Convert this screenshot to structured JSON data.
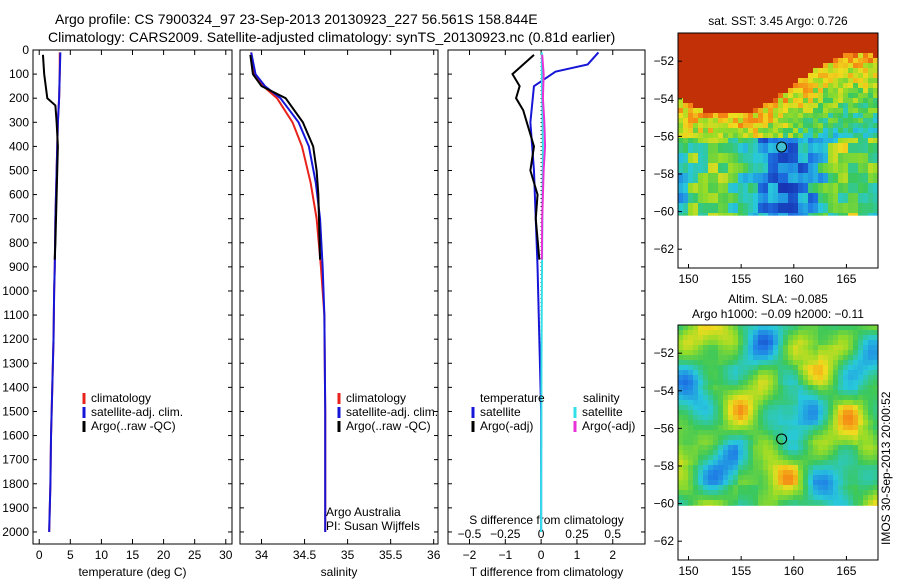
{
  "header": {
    "title_line1": "Argo profile: CS 7900324_97 23-Sep-2013 20130923_227 56.561S 158.844E",
    "title_line2": "Climatology: CARS2009. Satellite-adjusted climatology: synTS_20130923.nc (0.81d earlier)"
  },
  "side_text": "IMOS 30-Sep-2013 20:00:52",
  "colors": {
    "climatology": "#e8231c",
    "satellite": "#1616d8",
    "argo": "#000000",
    "salinity_satellite": "#33e0e8",
    "salinity_argo": "#e832d8"
  },
  "chart_data": [
    {
      "id": "temperature",
      "type": "line",
      "xlabel": "temperature (deg C)",
      "ylabel": "",
      "xlim": [
        -1,
        31
      ],
      "ylim": [
        2050,
        0
      ],
      "xticks": [
        0,
        5,
        10,
        15,
        20,
        25,
        30
      ],
      "xtick_labels": [
        "0",
        "5",
        "10",
        "15",
        "20",
        "25",
        "30"
      ],
      "yticks": [
        0,
        100,
        200,
        300,
        400,
        500,
        600,
        700,
        800,
        900,
        1000,
        1100,
        1200,
        1300,
        1400,
        1500,
        1600,
        1700,
        1800,
        1900,
        2000
      ],
      "ytick_labels": [
        "0",
        "100",
        "200",
        "300",
        "400",
        "500",
        "600",
        "700",
        "800",
        "900",
        "1000",
        "1100",
        "1200",
        "1300",
        "1400",
        "1500",
        "1600",
        "1700",
        "1800",
        "1900",
        "2000"
      ],
      "legend": [
        "climatology",
        "satellite-adj. clim.",
        "Argo(..raw -QC)"
      ],
      "legend_placement": "lower-center",
      "series": [
        {
          "name": "climatology",
          "color": "#e8231c",
          "x": [
            3.3,
            3.3,
            3.2,
            3.0,
            2.9,
            2.8,
            2.6,
            2.5,
            2.4,
            2.3,
            2.2,
            2.1,
            2.0,
            1.9,
            1.8,
            1.6
          ],
          "y": [
            10,
            100,
            200,
            300,
            400,
            500,
            700,
            900,
            1000,
            1200,
            1300,
            1400,
            1500,
            1600,
            1800,
            2000
          ]
        },
        {
          "name": "satellite-adj. clim.",
          "color": "#1616d8",
          "x": [
            3.4,
            3.3,
            3.2,
            3.0,
            2.9,
            2.8,
            2.6,
            2.5,
            2.4,
            2.3,
            2.2,
            2.1,
            2.0,
            1.9,
            1.8,
            1.6
          ],
          "y": [
            10,
            100,
            200,
            300,
            400,
            500,
            700,
            900,
            1000,
            1200,
            1300,
            1400,
            1500,
            1600,
            1800,
            2000
          ]
        },
        {
          "name": "Argo(..raw -QC)",
          "color": "#000000",
          "x": [
            0.6,
            0.8,
            1.3,
            2.6,
            2.8,
            3.0,
            2.9,
            2.8,
            2.7,
            2.6,
            2.5
          ],
          "y": [
            20,
            100,
            200,
            230,
            300,
            400,
            500,
            600,
            700,
            800,
            870
          ]
        }
      ]
    },
    {
      "id": "salinity",
      "type": "line",
      "xlabel": "salinity",
      "xlim": [
        33.75,
        36.05
      ],
      "ylim": [
        2050,
        0
      ],
      "xticks": [
        34,
        34.5,
        35,
        35.5,
        36
      ],
      "xtick_labels": [
        "34",
        "34.5",
        "35",
        "35.5",
        "36"
      ],
      "legend": [
        "climatology",
        "satellite-adj. clim.",
        "Argo(..raw -QC)"
      ],
      "legend_placement": "lower-right",
      "annotations": [
        "Argo Australia",
        "PI: Susan Wijffels"
      ],
      "series": [
        {
          "name": "climatology",
          "color": "#e8231c",
          "x": [
            33.88,
            33.92,
            34.02,
            34.18,
            34.36,
            34.47,
            34.57,
            34.64,
            34.69,
            34.73,
            34.74,
            34.74
          ],
          "y": [
            10,
            100,
            150,
            200,
            300,
            400,
            550,
            700,
            900,
            1100,
            1500,
            2000
          ]
        },
        {
          "name": "satellite-adj. clim.",
          "color": "#1616d8",
          "x": [
            33.88,
            33.93,
            34.04,
            34.22,
            34.43,
            34.55,
            34.63,
            34.68,
            34.71,
            34.73,
            34.74,
            34.74
          ],
          "y": [
            10,
            100,
            150,
            200,
            300,
            400,
            550,
            700,
            900,
            1100,
            1500,
            2000
          ]
        },
        {
          "name": "Argo(..raw -QC)",
          "color": "#000000",
          "x": [
            33.87,
            33.9,
            34.0,
            34.28,
            34.48,
            34.6,
            34.64,
            34.66,
            34.68
          ],
          "y": [
            20,
            100,
            150,
            200,
            300,
            400,
            500,
            600,
            870
          ]
        }
      ]
    },
    {
      "id": "difference",
      "type": "line",
      "xlabel": "T difference from climatology",
      "xlabel_top": "S difference from climatology",
      "xlim": [
        -2.6,
        2.9
      ],
      "ylim": [
        2050,
        0
      ],
      "xticks": [
        -2,
        -1,
        0,
        1,
        2
      ],
      "xtick_labels": [
        "−2",
        "−1",
        "0",
        "1",
        "2"
      ],
      "sticks": [
        -0.5,
        -0.25,
        0,
        0.25,
        0.5
      ],
      "stick_labels": [
        "−0.5",
        "−0.25",
        "0",
        "0.25",
        "0.5"
      ],
      "s_scale": 4,
      "legend_temperature": {
        "title": "temperature",
        "items": [
          "satellite",
          "Argo(-adj)"
        ]
      },
      "legend_salinity": {
        "title": "salinity",
        "items": [
          "satellite",
          "Argo(-adj)"
        ]
      },
      "series": [
        {
          "name": "temperature satellite",
          "color": "#1616d8",
          "x": [
            1.6,
            1.3,
            0.4,
            -0.2,
            -0.3,
            -0.2,
            -0.15,
            -0.1,
            -0.05,
            0.0,
            0.0,
            0.0
          ],
          "y": [
            10,
            60,
            90,
            150,
            300,
            500,
            700,
            900,
            1200,
            1500,
            1800,
            2000
          ]
        },
        {
          "name": "temperature Argo(-adj)",
          "color": "#000000",
          "x": [
            -0.2,
            -0.5,
            -0.8,
            -0.6,
            -0.7,
            -0.5,
            -0.4,
            -0.2,
            -0.3,
            -0.1,
            -0.15,
            -0.05
          ],
          "y": [
            20,
            60,
            100,
            150,
            200,
            250,
            300,
            400,
            500,
            600,
            700,
            870
          ]
        },
        {
          "name": "salinity satellite",
          "color": "#33e0e8",
          "x": [
            0.02,
            0.02,
            0.03,
            0.04,
            0.05,
            0.04,
            0.03,
            0.02,
            0.01,
            0.005,
            0.0,
            0.0
          ],
          "y": [
            10,
            100,
            200,
            300,
            400,
            600,
            800,
            1000,
            1300,
            1600,
            1800,
            2000
          ]
        },
        {
          "name": "salinity Argo(-adj)",
          "color": "#e832d8",
          "x": [
            0.03,
            0.07,
            0.05,
            0.09,
            0.11,
            0.07,
            0.05,
            0.03,
            0.02
          ],
          "y": [
            20,
            100,
            200,
            300,
            400,
            500,
            600,
            700,
            870
          ]
        }
      ]
    },
    {
      "id": "sst-map",
      "type": "heatmap",
      "title": "sat. SST: 3.45 Argo: 0.726",
      "xlim": [
        149,
        168
      ],
      "ylim": [
        -63,
        -50.5
      ],
      "xticks": [
        150,
        155,
        160,
        165
      ],
      "xtick_labels": [
        "150",
        "155",
        "160",
        "165"
      ],
      "yticks": [
        -52,
        -54,
        -56,
        -58,
        -60,
        -62
      ],
      "ytick_labels": [
        "−52",
        "−54",
        "−56",
        "−58",
        "−60",
        "−62"
      ],
      "data_extent_ymin": -60.2,
      "argo_point": {
        "lon": 158.844,
        "lat": -56.561,
        "color": "#40c0d0"
      }
    },
    {
      "id": "sla-map",
      "type": "heatmap",
      "title": "Altim. SLA: −0.085",
      "subtitle": "Argo h1000: −0.09 h2000: −0.11",
      "xlim": [
        149,
        168
      ],
      "ylim": [
        -63,
        -50.5
      ],
      "xticks": [
        150,
        155,
        160,
        165
      ],
      "xtick_labels": [
        "150",
        "155",
        "160",
        "165"
      ],
      "yticks": [
        -52,
        -54,
        -56,
        -58,
        -60,
        -62
      ],
      "ytick_labels": [
        "−52",
        "−54",
        "−56",
        "−58",
        "−60",
        "−62"
      ],
      "data_extent_ymin": -60.1,
      "argo_point": {
        "lon": 158.844,
        "lat": -56.561,
        "color": "#80c840"
      }
    }
  ]
}
